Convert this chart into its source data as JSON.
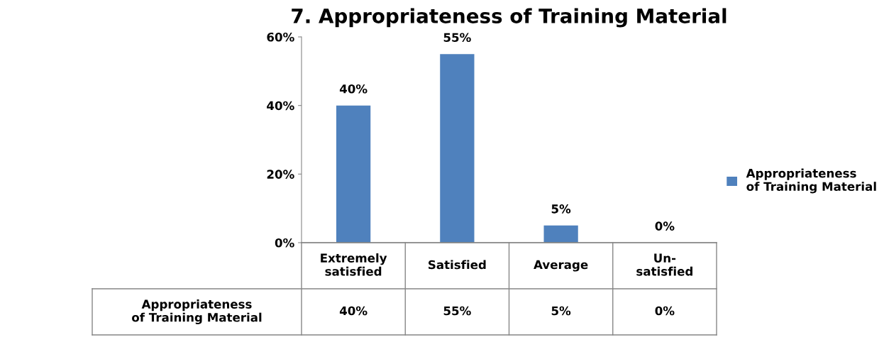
{
  "chart_data": {
    "type": "bar",
    "title": "7. Appropriateness of Training Material",
    "categories": [
      "Extremely satisfied",
      "Satisfied",
      "Average",
      "Un-satisfied"
    ],
    "series": [
      {
        "name": "Appropriateness of Training Material",
        "color": "#4f81bd",
        "values": [
          40,
          55,
          5,
          0
        ],
        "value_labels": [
          "40%",
          "55%",
          "5%",
          "0%"
        ]
      }
    ],
    "ylim": [
      0,
      60
    ],
    "yticks": [
      {
        "value": 0,
        "label": "0%"
      },
      {
        "value": 20,
        "label": "20%"
      },
      {
        "value": 40,
        "label": "40%"
      },
      {
        "value": 60,
        "label": "60%"
      }
    ],
    "grid": false,
    "legend": "right"
  }
}
